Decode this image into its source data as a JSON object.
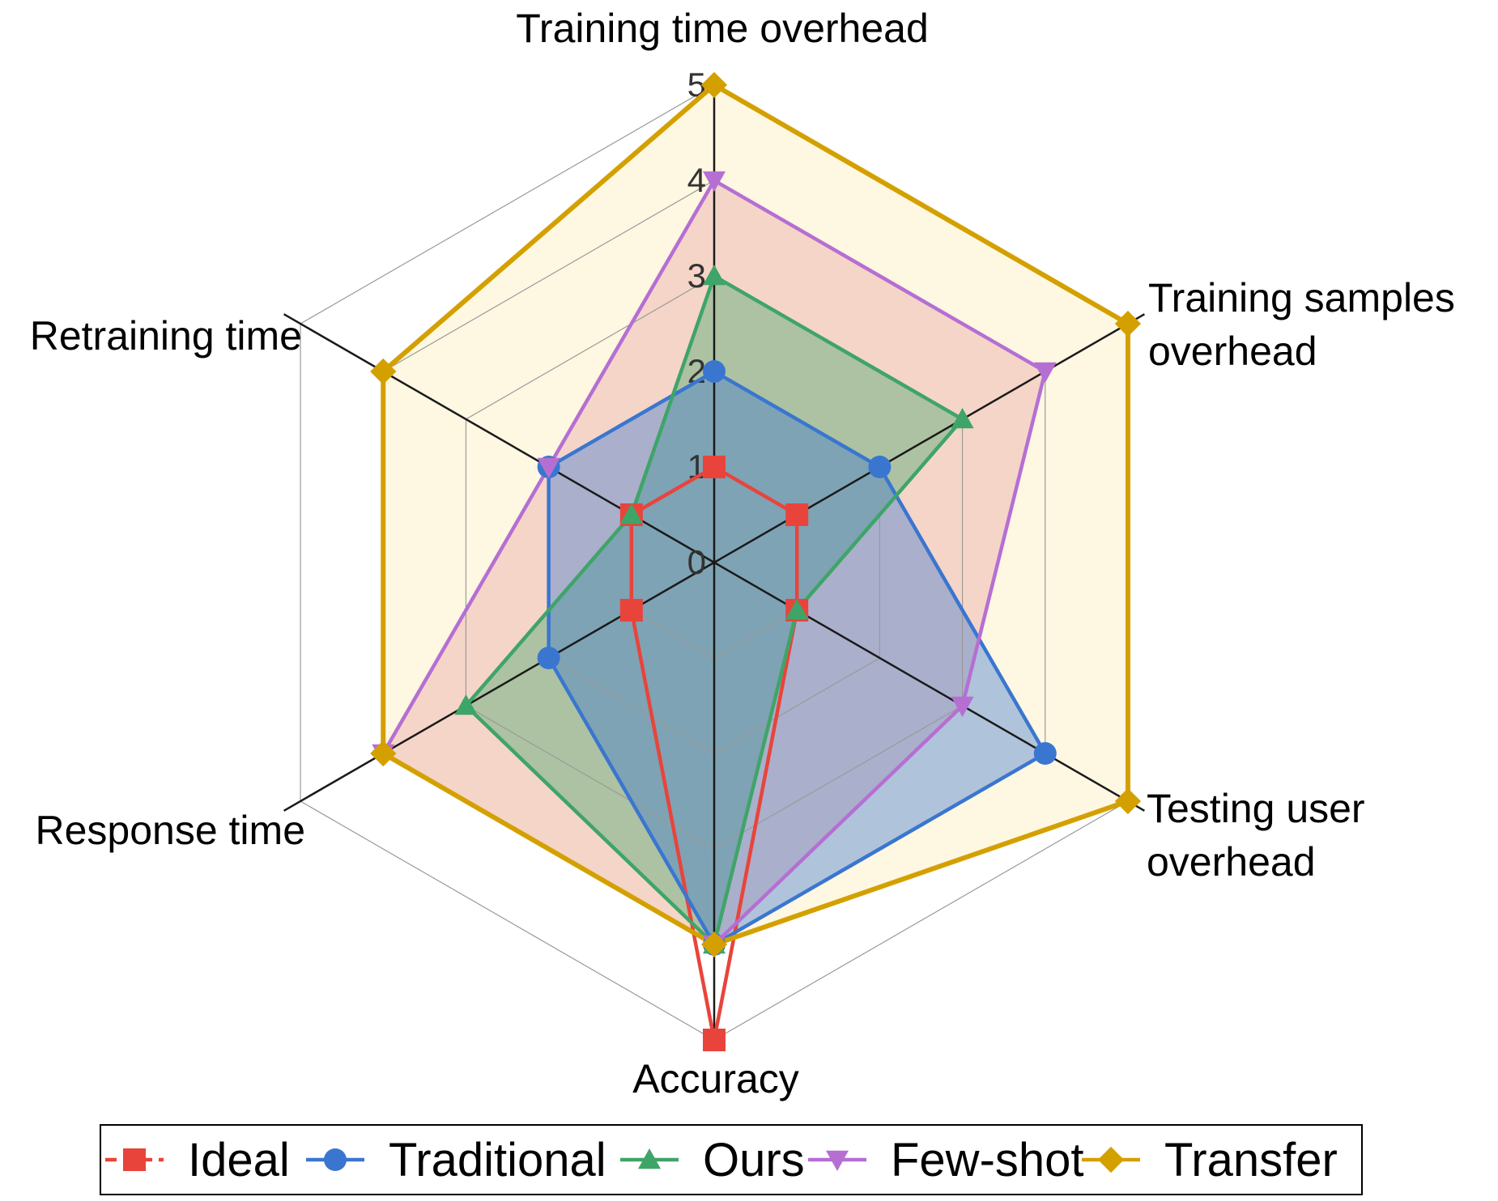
{
  "chart_data": {
    "type": "radar",
    "axes": [
      "Training time overhead",
      "Training samples overhead",
      "Testing user overhead",
      "Accuracy",
      "Response time",
      "Retraining time"
    ],
    "axis_label_lines": [
      [
        "Training time overhead"
      ],
      [
        "Training samples",
        "overhead"
      ],
      [
        "Testing user",
        "overhead"
      ],
      [
        "Accuracy"
      ],
      [
        "Response time"
      ],
      [
        "Retraining time"
      ]
    ],
    "rlim": [
      0,
      5
    ],
    "rticks": [
      "0",
      "1",
      "2",
      "3",
      "4",
      "5"
    ],
    "grid": true,
    "legend_position": "bottom",
    "series": [
      {
        "name": "Ideal",
        "values": [
          1,
          1,
          1,
          5,
          1,
          1
        ],
        "color": "#e8443c",
        "marker": "square",
        "fill": "none"
      },
      {
        "name": "Traditional",
        "values": [
          2,
          2,
          4,
          4,
          2,
          2
        ],
        "color": "#3a76d0",
        "marker": "circle",
        "fill": "#3a76d0"
      },
      {
        "name": "Ours",
        "values": [
          3,
          3,
          1,
          4,
          3,
          1
        ],
        "color": "#3fa468",
        "marker": "triangle-up",
        "fill": "#3fa468"
      },
      {
        "name": "Few-shot",
        "values": [
          4,
          4,
          3,
          4,
          4,
          2
        ],
        "color": "#b56fd3",
        "marker": "triangle-down",
        "fill": "#e8a2a2"
      },
      {
        "name": "Transfer",
        "values": [
          5,
          5,
          5,
          4,
          4,
          4
        ],
        "color": "#d4a000",
        "marker": "diamond",
        "fill": "#fde3a0"
      }
    ]
  }
}
